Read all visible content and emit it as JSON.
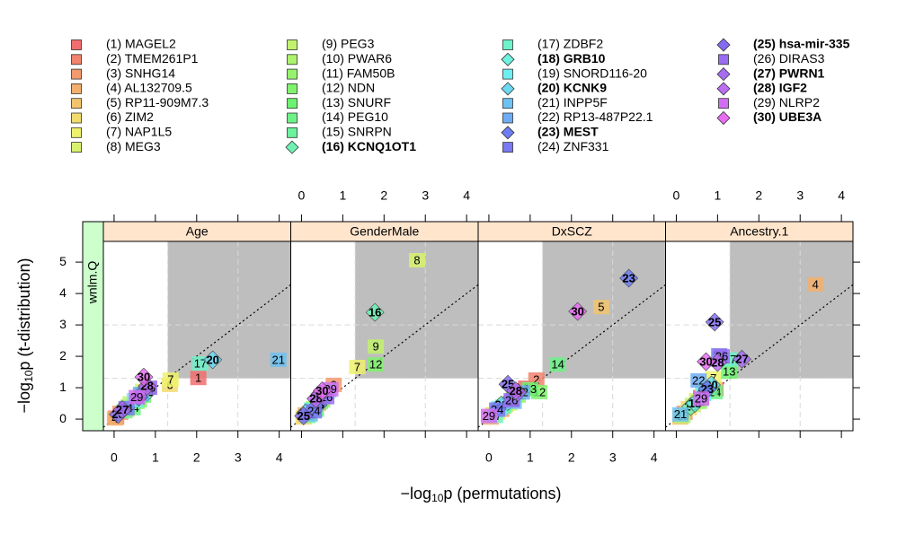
{
  "chart_data": {
    "type": "scatter",
    "xlabel": {
      "pre": "−log",
      "sub": "10",
      "post": "p  (permutations)"
    },
    "ylabel": {
      "pre": "−log",
      "sub": "10",
      "post": "p  (t-distribution)"
    },
    "row_strip": "wnlm.Q",
    "xlim": [
      -0.26,
      4.28
    ],
    "ylim": [
      -0.37,
      5.66
    ],
    "xticks": [
      0,
      1,
      2,
      3,
      4
    ],
    "yticks": [
      0,
      1,
      2,
      3,
      4,
      5
    ],
    "thresholds": [
      1.3,
      3
    ],
    "series": [
      {
        "name": "(1) MAGEL2",
        "label": "1",
        "color": "#f26d6d",
        "marker": "square",
        "bold": false
      },
      {
        "name": "(2) TMEM261P1",
        "label": "2",
        "color": "#f2836d",
        "marker": "square",
        "bold": false
      },
      {
        "name": "(3) SNHG14",
        "label": "3",
        "color": "#f2996d",
        "marker": "square",
        "bold": false
      },
      {
        "name": "(4) AL132709.5",
        "label": "4",
        "color": "#f2af6d",
        "marker": "square",
        "bold": false
      },
      {
        "name": "(5) RP11-909M7.3",
        "label": "5",
        "color": "#f2c56d",
        "marker": "square",
        "bold": false
      },
      {
        "name": "(6) ZIM2",
        "label": "6",
        "color": "#f2db6d",
        "marker": "square",
        "bold": false
      },
      {
        "name": "(7) NAP1L5",
        "label": "7",
        "color": "#eef26d",
        "marker": "square",
        "bold": false
      },
      {
        "name": "(8) MEG3",
        "label": "8",
        "color": "#d8f26d",
        "marker": "square",
        "bold": false
      },
      {
        "name": "(9) PEG3",
        "label": "9",
        "color": "#c2f26d",
        "marker": "square",
        "bold": false
      },
      {
        "name": "(10) PWAR6",
        "label": "10",
        "color": "#acf26d",
        "marker": "square",
        "bold": false
      },
      {
        "name": "(11) FAM50B",
        "label": "11",
        "color": "#96f26d",
        "marker": "square",
        "bold": false
      },
      {
        "name": "(12) NDN",
        "label": "12",
        "color": "#80f26d",
        "marker": "square",
        "bold": false
      },
      {
        "name": "(13) SNURF",
        "label": "13",
        "color": "#6df271",
        "marker": "square",
        "bold": false
      },
      {
        "name": "(14) PEG10",
        "label": "14",
        "color": "#6df287",
        "marker": "square",
        "bold": false
      },
      {
        "name": "(15) SNRPN",
        "label": "15",
        "color": "#6df29d",
        "marker": "square",
        "bold": false
      },
      {
        "name": "(16) KCNQ1OT1",
        "label": "16",
        "color": "#6df2b3",
        "marker": "diamond",
        "bold": true
      },
      {
        "name": "(17) ZDBF2",
        "label": "17",
        "color": "#6df2c9",
        "marker": "square",
        "bold": false
      },
      {
        "name": "(18) GRB10",
        "label": "18",
        "color": "#6df2df",
        "marker": "diamond",
        "bold": true
      },
      {
        "name": "(19) SNORD116-20",
        "label": "19",
        "color": "#6deef2",
        "marker": "square",
        "bold": false
      },
      {
        "name": "(20) KCNK9",
        "label": "20",
        "color": "#6dd8f2",
        "marker": "diamond",
        "bold": true
      },
      {
        "name": "(21) INPP5F",
        "label": "21",
        "color": "#6dc2f2",
        "marker": "square",
        "bold": false
      },
      {
        "name": "(22) RP13-487P22.1",
        "label": "22",
        "color": "#6dacf2",
        "marker": "square",
        "bold": false
      },
      {
        "name": "(23) MEST",
        "label": "23",
        "color": "#6d7ef2",
        "marker": "diamond",
        "bold": true
      },
      {
        "name": "(24) ZNF331",
        "label": "24",
        "color": "#7a78f2",
        "marker": "square",
        "bold": false
      },
      {
        "name": "(25) hsa-mir-335",
        "label": "25",
        "color": "#846df2",
        "marker": "diamond",
        "bold": true
      },
      {
        "name": "(26) DIRAS3",
        "label": "26",
        "color": "#986df2",
        "marker": "square",
        "bold": false
      },
      {
        "name": "(27) PWRN1",
        "label": "27",
        "color": "#a66df2",
        "marker": "diamond",
        "bold": true
      },
      {
        "name": "(28) IGF2",
        "label": "28",
        "color": "#bc6df2",
        "marker": "diamond",
        "bold": true
      },
      {
        "name": "(29) NLRP2",
        "label": "29",
        "color": "#d26df2",
        "marker": "square",
        "bold": false
      },
      {
        "name": "(30) UBE3A",
        "label": "30",
        "color": "#e86df2",
        "marker": "diamond",
        "bold": true
      }
    ],
    "panels": [
      {
        "strip": "Age",
        "x": [
          2.04,
          0.05,
          0.15,
          0.02,
          0.3,
          1.35,
          1.37,
          0.7,
          0.4,
          0.35,
          0.55,
          0.6,
          0.7,
          0.45,
          0.25,
          0.8,
          2.09,
          0.75,
          0.5,
          2.39,
          3.98,
          0.65,
          0.6,
          0.3,
          0.1,
          0.85,
          0.2,
          0.8,
          0.55,
          0.72
        ],
        "y": [
          1.31,
          0.05,
          0.2,
          0.02,
          0.3,
          1.09,
          1.26,
          0.9,
          0.5,
          0.4,
          0.55,
          0.6,
          0.75,
          0.35,
          0.25,
          0.85,
          1.77,
          0.95,
          0.6,
          1.89,
          1.89,
          0.8,
          0.7,
          0.35,
          0.15,
          1.0,
          0.3,
          1.05,
          0.7,
          1.34
        ]
      },
      {
        "strip": "GenderMale",
        "x": [
          0.6,
          0.4,
          0.78,
          0.1,
          0.2,
          0.05,
          1.35,
          2.8,
          1.8,
          0.3,
          0.5,
          1.8,
          0.45,
          0.35,
          0.15,
          1.78,
          0.25,
          0.55,
          0.65,
          0.1,
          0.2,
          0.5,
          0.4,
          0.3,
          0.05,
          0.6,
          0.45,
          0.35,
          0.7,
          0.5
        ],
        "y": [
          0.85,
          0.5,
          1.09,
          0.15,
          0.2,
          0.05,
          1.66,
          5.06,
          2.31,
          0.35,
          0.6,
          1.74,
          0.55,
          0.3,
          0.1,
          3.4,
          0.3,
          0.75,
          0.9,
          0.2,
          0.15,
          0.7,
          0.45,
          0.25,
          0.1,
          0.7,
          0.8,
          0.65,
          0.95,
          0.9
        ]
      },
      {
        "strip": "DxSCZ",
        "x": [
          0.9,
          1.15,
          0.3,
          0.05,
          2.72,
          0.1,
          0.2,
          0.5,
          0.4,
          0.6,
          0.7,
          1.22,
          1.0,
          1.67,
          0.35,
          0.5,
          0.15,
          0.45,
          0.25,
          0.3,
          0.6,
          0.8,
          3.39,
          0.2,
          0.46,
          0.55,
          0.7,
          0.65,
          0.0,
          2.15
        ],
        "y": [
          1.0,
          1.26,
          0.3,
          0.05,
          3.57,
          0.15,
          0.2,
          0.5,
          0.45,
          0.7,
          0.75,
          0.86,
          0.95,
          1.74,
          0.4,
          0.6,
          0.1,
          0.55,
          0.35,
          0.45,
          0.55,
          0.85,
          4.49,
          0.3,
          1.11,
          0.6,
          0.85,
          0.9,
          0.1,
          3.43
        ]
      },
      {
        "strip": "Ancestry.1",
        "x": [
          0.6,
          0.95,
          0.2,
          3.37,
          0.1,
          0.3,
          0.9,
          0.5,
          0.4,
          0.15,
          0.55,
          0.7,
          1.28,
          0.93,
          0.8,
          0.35,
          1.3,
          0.45,
          0.65,
          0.85,
          0.1,
          0.54,
          0.75,
          1.04,
          0.93,
          1.1,
          1.59,
          1.0,
          0.6,
          0.72
        ],
        "y": [
          0.7,
          0.95,
          0.2,
          4.29,
          0.05,
          0.35,
          1.3,
          0.6,
          0.45,
          0.1,
          0.55,
          0.9,
          1.51,
          0.86,
          1.0,
          0.4,
          1.9,
          0.5,
          0.8,
          1.09,
          0.15,
          1.23,
          0.95,
          2.03,
          3.09,
          2.0,
          1.91,
          1.8,
          0.65,
          1.83
        ]
      }
    ]
  }
}
